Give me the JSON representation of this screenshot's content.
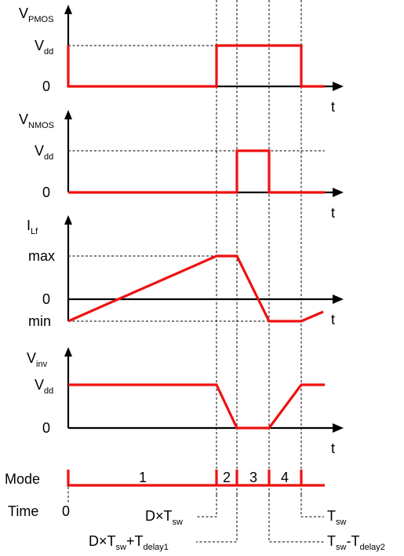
{
  "panels": {
    "vpmos": {
      "y_main": "V",
      "y_sub": "PMOS",
      "level_high": "V",
      "level_high_sub": "dd",
      "level_zero": "0",
      "t_label": "t"
    },
    "vnmos": {
      "y_main": "V",
      "y_sub": "NMOS",
      "level_high": "V",
      "level_high_sub": "dd",
      "level_zero": "0",
      "t_label": "t"
    },
    "ilf": {
      "y_main": "I",
      "y_sub": "Lf",
      "level_max": "max",
      "level_zero": "0",
      "level_min": "min",
      "t_label": "t"
    },
    "vinv": {
      "y_main": "V",
      "y_sub": "inv",
      "level_high": "V",
      "level_high_sub": "dd",
      "level_zero": "0",
      "t_label": "t"
    }
  },
  "mode_row": {
    "label": "Mode",
    "modes": [
      "1",
      "2",
      "3",
      "4"
    ]
  },
  "time_row": {
    "label": "Time",
    "t0": "0",
    "t1": {
      "main": "D×T",
      "sub": "sw"
    },
    "t2": {
      "main": "D×T",
      "sub": "sw",
      "main2": "+T",
      "sub2": "delay1"
    },
    "t3": {
      "main": "T",
      "sub": "sw",
      "main2": "-T",
      "sub2": "delay2"
    },
    "t4": {
      "main": "T",
      "sub": "sw"
    }
  },
  "colors": {
    "trace": "#ee1111",
    "axis": "#000000"
  }
}
